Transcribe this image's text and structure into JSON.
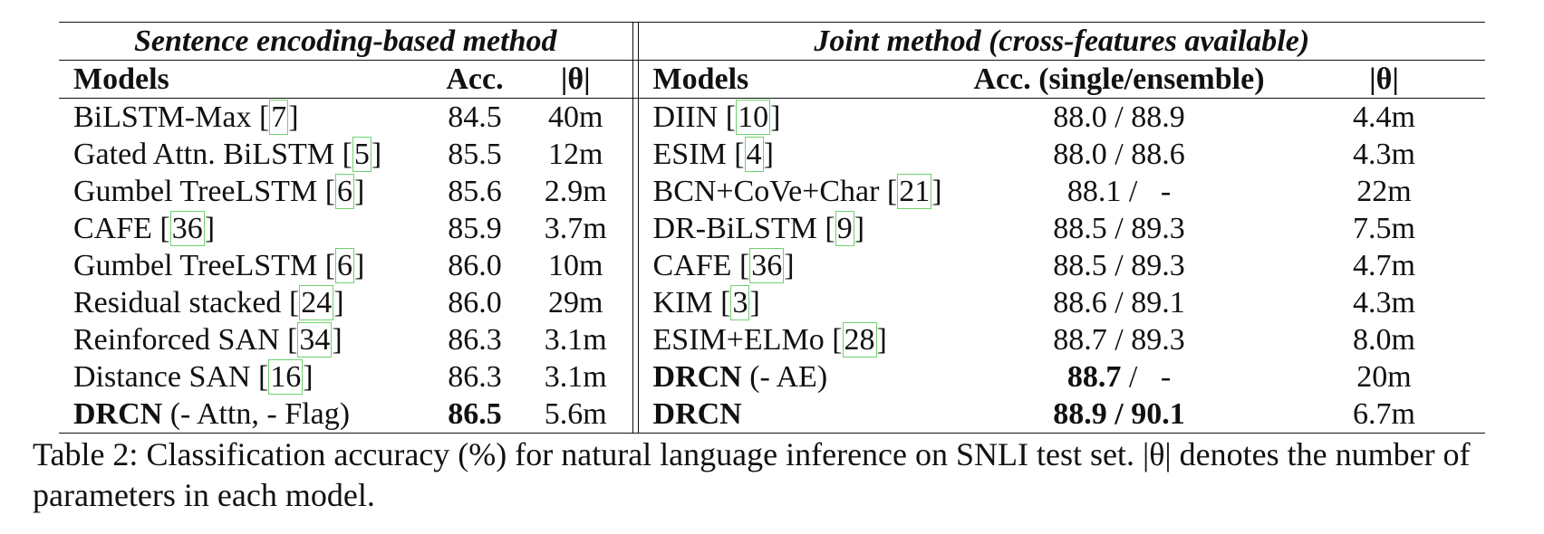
{
  "table": {
    "group_left": "Sentence encoding-based method",
    "group_right": "Joint method (cross-features available)",
    "headers": {
      "left_models": "Models",
      "left_acc": "Acc.",
      "left_params": "|θ|",
      "right_models": "Models",
      "right_acc": "Acc. (single/ensemble)",
      "right_params": "|θ|"
    },
    "rows": [
      {
        "l_name": "BiLSTM-Max",
        "l_ref": "7",
        "l_acc": "84.5",
        "l_params": "40m",
        "r_name": "DIIN",
        "r_suffix": "",
        "r_ref": "10",
        "r_acc": "88.0 / 88.9",
        "r_params": "4.4m"
      },
      {
        "l_name": "Gated Attn. BiLSTM",
        "l_ref": "5",
        "l_acc": "85.5",
        "l_params": "12m",
        "r_name": "ESIM",
        "r_suffix": "",
        "r_ref": "4",
        "r_acc": "88.0 / 88.6",
        "r_params": "4.3m"
      },
      {
        "l_name": "Gumbel TreeLSTM",
        "l_ref": "6",
        "l_acc": "85.6",
        "l_params": "2.9m",
        "r_name": "BCN+CoVe+Char",
        "r_suffix": "",
        "r_ref": "21",
        "r_acc": "88.1 /   -",
        "r_params": "22m"
      },
      {
        "l_name": "CAFE",
        "l_ref": "36",
        "l_acc": "85.9",
        "l_params": "3.7m",
        "r_name": "DR-BiLSTM",
        "r_suffix": "",
        "r_ref": "9",
        "r_acc": "88.5 / 89.3",
        "r_params": "7.5m"
      },
      {
        "l_name": "Gumbel TreeLSTM",
        "l_ref": "6",
        "l_acc": "86.0",
        "l_params": "10m",
        "r_name": "CAFE",
        "r_suffix": "",
        "r_ref": "36",
        "r_acc": "88.5 / 89.3",
        "r_params": "4.7m"
      },
      {
        "l_name": "Residual stacked",
        "l_ref": "24",
        "l_acc": "86.0",
        "l_params": "29m",
        "r_name": "KIM",
        "r_suffix": "",
        "r_ref": "3",
        "r_acc": "88.6 / 89.1",
        "r_params": "4.3m"
      },
      {
        "l_name": "Reinforced SAN",
        "l_ref": "34",
        "l_acc": "86.3",
        "l_params": "3.1m",
        "r_name": "ESIM+ELMo",
        "r_suffix": "",
        "r_ref": "28",
        "r_acc": "88.7 / 89.3",
        "r_params": "8.0m"
      },
      {
        "l_name": "Distance SAN",
        "l_ref": "16",
        "l_acc": "86.3",
        "l_params": "3.1m",
        "r_name": "DRCN",
        "r_suffix": "(- AE)",
        "r_ref": "",
        "r_acc": "88.7",
        "r_acc_rest": "/   -",
        "r_params": "20m"
      },
      {
        "l_name": "DRCN",
        "l_suffix": "(- Attn, - Flag)",
        "l_ref": "",
        "l_acc": "86.5",
        "l_params": "5.6m",
        "r_name": "DRCN",
        "r_suffix": "",
        "r_ref": "",
        "r_acc": "88.9 / 90.1",
        "r_params": "6.7m"
      }
    ]
  },
  "caption": {
    "label": "Table 2:",
    "text": "Classification accuracy (%) for natural language inference on SNLI test set. |θ| denotes the number of parameters in each model."
  }
}
